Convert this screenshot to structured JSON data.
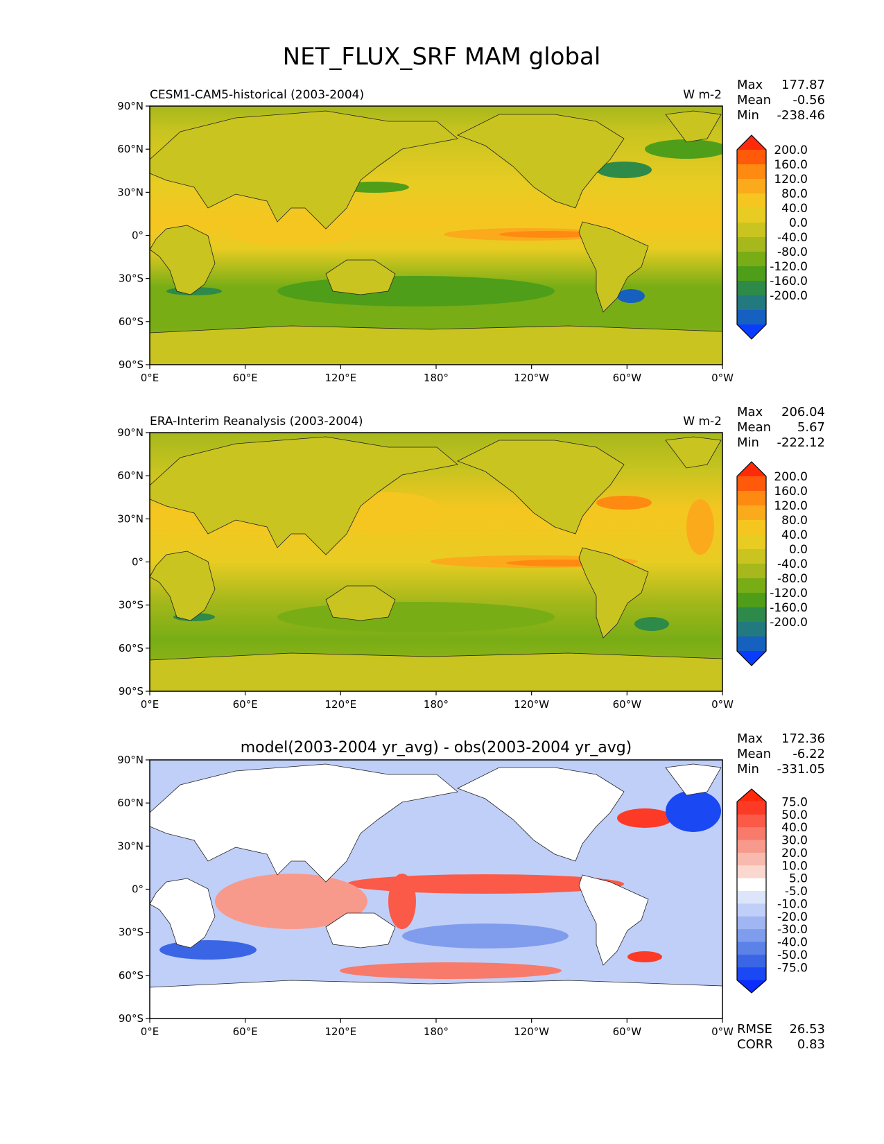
{
  "title": "NET_FLUX_SRF MAM global",
  "chart_data": [
    {
      "type": "heatmap",
      "panel": "test",
      "left_title": "CESM1-CAM5-historical (2003-2004)",
      "right_title": "W m-2",
      "stats": [
        {
          "label": "Max",
          "value": "177.87"
        },
        {
          "label": "Mean",
          "value": "-0.56"
        },
        {
          "label": "Min",
          "value": "-238.46"
        }
      ],
      "xticks": [
        "0°E",
        "60°E",
        "120°E",
        "180°",
        "120°W",
        "60°W",
        "0°W"
      ],
      "yticks": [
        "90°N",
        "60°N",
        "30°N",
        "0°",
        "30°S",
        "60°S",
        "90°S"
      ],
      "xlim": [
        0,
        360
      ],
      "ylim": [
        -90,
        90
      ],
      "colorbar": {
        "labels": [
          "200.0",
          "160.0",
          "120.0",
          "80.0",
          "40.0",
          "0.0",
          "-40.0",
          "-80.0",
          "-120.0",
          "-160.0",
          "-200.0"
        ],
        "colors": [
          "#ff2a0a",
          "#fe5a0a",
          "#fe8a12",
          "#fbaa1c",
          "#f6c620",
          "#e8cc22",
          "#c9c420",
          "#a6b81b",
          "#78ad15",
          "#4e9e1a",
          "#2e8a48",
          "#227a80",
          "#1660c0",
          "#0a3cff"
        ]
      }
    },
    {
      "type": "heatmap",
      "panel": "reference",
      "left_title": "ERA-Interim Reanalysis (2003-2004)",
      "right_title": "W m-2",
      "stats": [
        {
          "label": "Max",
          "value": "206.04"
        },
        {
          "label": "Mean",
          "value": "5.67"
        },
        {
          "label": "Min",
          "value": "-222.12"
        }
      ],
      "xticks": [
        "0°E",
        "60°E",
        "120°E",
        "180°",
        "120°W",
        "60°W",
        "0°W"
      ],
      "yticks": [
        "90°N",
        "60°N",
        "30°N",
        "0°",
        "30°S",
        "60°S",
        "90°S"
      ],
      "xlim": [
        0,
        360
      ],
      "ylim": [
        -90,
        90
      ],
      "colorbar": {
        "labels": [
          "200.0",
          "160.0",
          "120.0",
          "80.0",
          "40.0",
          "0.0",
          "-40.0",
          "-80.0",
          "-120.0",
          "-160.0",
          "-200.0"
        ],
        "colors": [
          "#ff2a0a",
          "#fe5a0a",
          "#fe8a12",
          "#fbaa1c",
          "#f6c620",
          "#e8cc22",
          "#c9c420",
          "#a6b81b",
          "#78ad15",
          "#4e9e1a",
          "#2e8a48",
          "#227a80",
          "#1660c0",
          "#0a3cff"
        ]
      }
    },
    {
      "type": "heatmap",
      "panel": "difference",
      "center_title": "model(2003-2004 yr_avg) - obs(2003-2004 yr_avg)",
      "stats": [
        {
          "label": "Max",
          "value": "172.36"
        },
        {
          "label": "Mean",
          "value": "-6.22"
        },
        {
          "label": "Min",
          "value": "-331.05"
        }
      ],
      "metrics": [
        {
          "label": "RMSE",
          "value": "26.53"
        },
        {
          "label": "CORR",
          "value": "0.83"
        }
      ],
      "xticks": [
        "0°E",
        "60°E",
        "120°E",
        "180°",
        "120°W",
        "60°W",
        "0°W"
      ],
      "yticks": [
        "90°N",
        "60°N",
        "30°N",
        "0°",
        "30°S",
        "60°S",
        "90°S"
      ],
      "xlim": [
        0,
        360
      ],
      "ylim": [
        -90,
        90
      ],
      "colorbar": {
        "labels": [
          "75.0",
          "50.0",
          "40.0",
          "30.0",
          "20.0",
          "10.0",
          "5.0",
          "-5.0",
          "-10.0",
          "-20.0",
          "-30.0",
          "-40.0",
          "-50.0",
          "-75.0"
        ],
        "colors": [
          "#ff2a0a",
          "#fd3a26",
          "#fb5a48",
          "#f87a6a",
          "#f79a8c",
          "#f8baae",
          "#fad8d0",
          "#ffffff",
          "#dde5fb",
          "#c0cff8",
          "#a0b6f3",
          "#809ded",
          "#5c82e8",
          "#3a66e6",
          "#1a48f2",
          "#0a2cff"
        ]
      }
    }
  ]
}
